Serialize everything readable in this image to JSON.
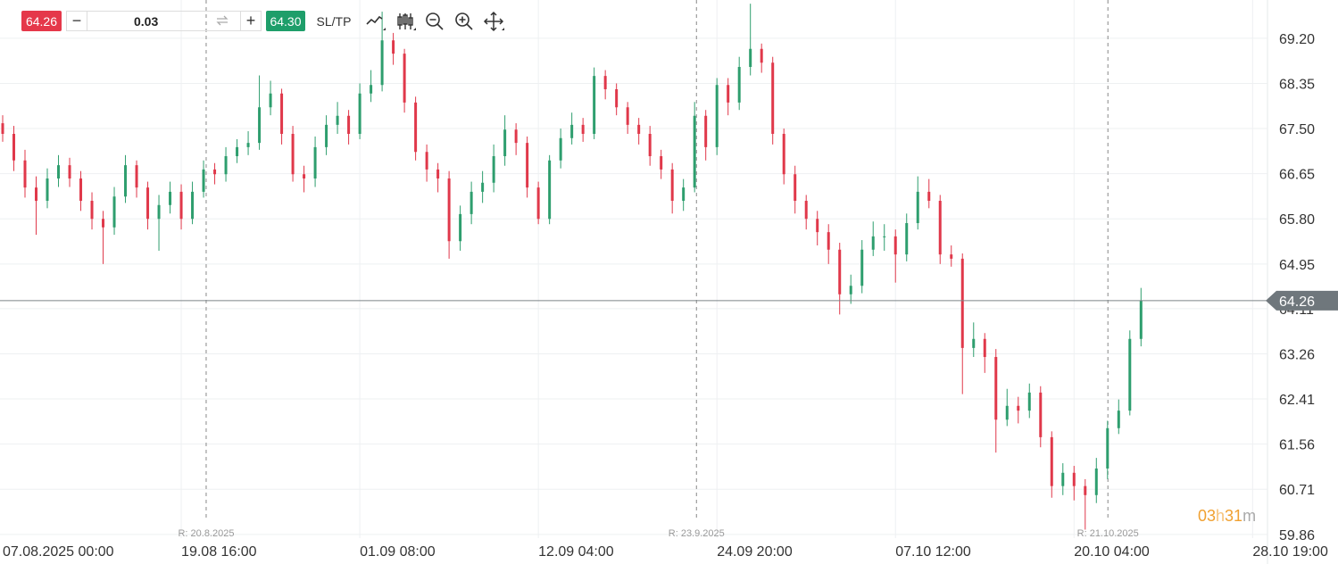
{
  "toolbar": {
    "sell_price": "64.26",
    "quantity": "0.03",
    "buy_price": "64.30",
    "sltp": "SL/TP"
  },
  "chart_data": {
    "type": "candlestick",
    "up_color": "#2e9e6e",
    "down_color": "#e0384a",
    "x": [
      0,
      3,
      6,
      9,
      12,
      15,
      18,
      21,
      24,
      27,
      30,
      33,
      36,
      39,
      42,
      45,
      48,
      51,
      54,
      57,
      60,
      63,
      66,
      69,
      72,
      75,
      78,
      81,
      84,
      87,
      90,
      93,
      96,
      99,
      102,
      105,
      108,
      111,
      114,
      117,
      120,
      123,
      126,
      129,
      132,
      135,
      138,
      141,
      144,
      147,
      150,
      153,
      156,
      159,
      162,
      165,
      168,
      171,
      174,
      177,
      180,
      183,
      186,
      189,
      192,
      195,
      198,
      201,
      204,
      207,
      210,
      213,
      216,
      219,
      222,
      225,
      228,
      231,
      234,
      237,
      240,
      243,
      246,
      249,
      252,
      255,
      258,
      261,
      264,
      267,
      270,
      273,
      276,
      279,
      282,
      285,
      288,
      291,
      294,
      297,
      300,
      303,
      306
    ],
    "ohlc": [
      [
        67.6,
        67.75,
        67.25,
        67.4
      ],
      [
        67.4,
        67.55,
        66.7,
        66.9
      ],
      [
        66.9,
        67.1,
        66.2,
        66.39
      ],
      [
        66.39,
        66.6,
        65.5,
        66.14
      ],
      [
        66.14,
        66.75,
        66.0,
        66.56
      ],
      [
        66.56,
        67.0,
        66.4,
        66.81
      ],
      [
        66.81,
        66.95,
        66.4,
        66.56
      ],
      [
        66.56,
        66.7,
        65.95,
        66.14
      ],
      [
        66.14,
        66.3,
        65.6,
        65.8
      ],
      [
        65.8,
        65.95,
        64.95,
        65.64
      ],
      [
        65.64,
        66.4,
        65.5,
        66.22
      ],
      [
        66.22,
        67.0,
        66.1,
        66.81
      ],
      [
        66.81,
        66.9,
        66.2,
        66.39
      ],
      [
        66.39,
        66.5,
        65.6,
        65.8
      ],
      [
        65.8,
        66.25,
        65.2,
        66.06
      ],
      [
        66.06,
        66.5,
        65.9,
        66.31
      ],
      [
        66.31,
        66.45,
        65.6,
        65.8
      ],
      [
        65.8,
        66.5,
        65.7,
        66.31
      ],
      [
        66.31,
        66.9,
        66.2,
        66.73
      ],
      [
        66.73,
        66.85,
        66.45,
        66.64
      ],
      [
        66.64,
        67.15,
        66.5,
        66.98
      ],
      [
        66.98,
        67.3,
        66.85,
        67.15
      ],
      [
        67.15,
        67.45,
        67.0,
        67.23
      ],
      [
        67.23,
        68.5,
        67.1,
        67.9
      ],
      [
        67.9,
        68.4,
        67.75,
        68.16
      ],
      [
        68.16,
        68.25,
        67.2,
        67.4
      ],
      [
        67.4,
        67.55,
        66.5,
        66.64
      ],
      [
        66.64,
        66.8,
        66.3,
        66.56
      ],
      [
        66.56,
        67.35,
        66.4,
        67.15
      ],
      [
        67.15,
        67.75,
        67.0,
        67.57
      ],
      [
        67.57,
        68.0,
        67.4,
        67.74
      ],
      [
        67.74,
        67.85,
        67.2,
        67.4
      ],
      [
        67.4,
        68.35,
        67.3,
        68.16
      ],
      [
        68.16,
        68.6,
        68.0,
        68.32
      ],
      [
        68.32,
        69.7,
        68.2,
        69.16
      ],
      [
        69.16,
        69.3,
        68.7,
        68.91
      ],
      [
        68.91,
        69.0,
        67.8,
        67.99
      ],
      [
        67.99,
        68.1,
        66.9,
        67.06
      ],
      [
        67.06,
        67.2,
        66.5,
        66.73
      ],
      [
        66.73,
        66.85,
        66.3,
        66.56
      ],
      [
        66.56,
        66.7,
        65.05,
        65.38
      ],
      [
        65.38,
        66.05,
        65.2,
        65.89
      ],
      [
        65.89,
        66.5,
        65.7,
        66.31
      ],
      [
        66.31,
        66.7,
        66.1,
        66.48
      ],
      [
        66.48,
        67.2,
        66.3,
        66.98
      ],
      [
        66.98,
        67.75,
        66.8,
        67.48
      ],
      [
        67.48,
        67.6,
        67.0,
        67.23
      ],
      [
        67.23,
        67.35,
        66.2,
        66.39
      ],
      [
        66.39,
        66.5,
        65.7,
        65.8
      ],
      [
        65.8,
        67.0,
        65.7,
        66.9
      ],
      [
        66.9,
        67.5,
        66.75,
        67.32
      ],
      [
        67.32,
        67.8,
        67.2,
        67.57
      ],
      [
        67.57,
        67.7,
        67.25,
        67.4
      ],
      [
        67.4,
        68.65,
        67.3,
        68.49
      ],
      [
        68.49,
        68.6,
        68.05,
        68.24
      ],
      [
        68.24,
        68.35,
        67.75,
        67.9
      ],
      [
        67.9,
        68.0,
        67.4,
        67.57
      ],
      [
        67.57,
        67.7,
        67.2,
        67.4
      ],
      [
        67.4,
        67.55,
        66.8,
        66.98
      ],
      [
        66.98,
        67.1,
        66.55,
        66.73
      ],
      [
        66.73,
        66.85,
        65.9,
        66.14
      ],
      [
        66.14,
        66.55,
        65.95,
        66.39
      ],
      [
        66.39,
        68.0,
        66.3,
        67.74
      ],
      [
        67.74,
        67.85,
        66.9,
        67.15
      ],
      [
        67.15,
        68.45,
        67.0,
        68.32
      ],
      [
        68.32,
        68.45,
        67.75,
        67.99
      ],
      [
        67.99,
        68.85,
        67.85,
        68.66
      ],
      [
        68.66,
        69.85,
        68.5,
        69.0
      ],
      [
        69.0,
        69.1,
        68.55,
        68.74
      ],
      [
        68.74,
        68.85,
        67.2,
        67.4
      ],
      [
        67.4,
        67.5,
        66.45,
        66.64
      ],
      [
        66.64,
        66.8,
        65.9,
        66.14
      ],
      [
        66.14,
        66.25,
        65.6,
        65.8
      ],
      [
        65.8,
        65.95,
        65.3,
        65.55
      ],
      [
        65.55,
        65.7,
        64.95,
        65.22
      ],
      [
        65.22,
        65.35,
        64.0,
        64.38
      ],
      [
        64.38,
        64.75,
        64.2,
        64.54
      ],
      [
        64.54,
        65.4,
        64.4,
        65.22
      ],
      [
        65.22,
        65.75,
        65.1,
        65.47
      ],
      [
        65.47,
        65.7,
        65.2,
        65.47
      ],
      [
        65.47,
        65.6,
        64.6,
        65.13
      ],
      [
        65.13,
        65.9,
        65.0,
        65.72
      ],
      [
        65.72,
        66.6,
        65.6,
        66.31
      ],
      [
        66.31,
        66.55,
        66.0,
        66.14
      ],
      [
        66.14,
        66.25,
        64.95,
        65.13
      ],
      [
        65.13,
        65.3,
        64.9,
        65.05
      ],
      [
        65.05,
        65.15,
        62.5,
        63.37
      ],
      [
        63.37,
        63.85,
        63.2,
        63.54
      ],
      [
        63.54,
        63.65,
        62.9,
        63.2
      ],
      [
        63.2,
        63.35,
        61.4,
        62.02
      ],
      [
        62.02,
        62.6,
        61.9,
        62.28
      ],
      [
        62.28,
        62.45,
        61.95,
        62.19
      ],
      [
        62.19,
        62.7,
        62.05,
        62.53
      ],
      [
        62.53,
        62.65,
        61.5,
        61.69
      ],
      [
        61.69,
        61.8,
        60.55,
        60.77
      ],
      [
        60.77,
        61.2,
        60.6,
        61.02
      ],
      [
        61.02,
        61.15,
        60.5,
        60.77
      ],
      [
        60.77,
        60.9,
        59.95,
        60.6
      ],
      [
        60.6,
        61.3,
        60.45,
        61.1
      ],
      [
        61.1,
        62.0,
        60.9,
        61.86
      ],
      [
        61.86,
        62.4,
        61.75,
        62.19
      ],
      [
        62.19,
        63.7,
        62.1,
        63.54
      ],
      [
        63.54,
        64.5,
        63.4,
        64.26
      ]
    ],
    "xlim": [
      0,
      340
    ],
    "xticks": [
      {
        "value": 0,
        "label": "07.08.2025 00:00"
      },
      {
        "value": 48,
        "label": "19.08 16:00"
      },
      {
        "value": 96,
        "label": "01.09 08:00"
      },
      {
        "value": 144,
        "label": "12.09 04:00"
      },
      {
        "value": 192,
        "label": "24.09 20:00"
      },
      {
        "value": 240,
        "label": "07.10 12:00"
      },
      {
        "value": 288,
        "label": "20.10 04:00"
      },
      {
        "value": 336,
        "label": "28.10 19:00"
      }
    ],
    "ylim": [
      59.79,
      69.92
    ],
    "yticks": [
      {
        "value": 69.2,
        "label": "69.20"
      },
      {
        "value": 68.35,
        "label": "68.35"
      },
      {
        "value": 67.5,
        "label": "67.50"
      },
      {
        "value": 66.65,
        "label": "66.65"
      },
      {
        "value": 65.8,
        "label": "65.80"
      },
      {
        "value": 64.95,
        "label": "64.95"
      },
      {
        "value": 64.11,
        "label": "64.11"
      },
      {
        "value": 63.26,
        "label": "63.26"
      },
      {
        "value": 62.41,
        "label": "62.41"
      },
      {
        "value": 61.56,
        "label": "61.56"
      },
      {
        "value": 60.71,
        "label": "60.71"
      },
      {
        "value": 59.86,
        "label": "59.86"
      }
    ],
    "grid": true,
    "current_price": 64.26,
    "markers": [
      {
        "x": 54.7,
        "label": "R: 20.8.2025"
      },
      {
        "x": 186.5,
        "label": "R: 23.9.2025"
      },
      {
        "x": 297.1,
        "label": "R: 21.10.2025"
      }
    ],
    "countdown": {
      "hours": "03",
      "hours_unit": "h",
      "minutes": "31",
      "minutes_unit": "m"
    }
  }
}
